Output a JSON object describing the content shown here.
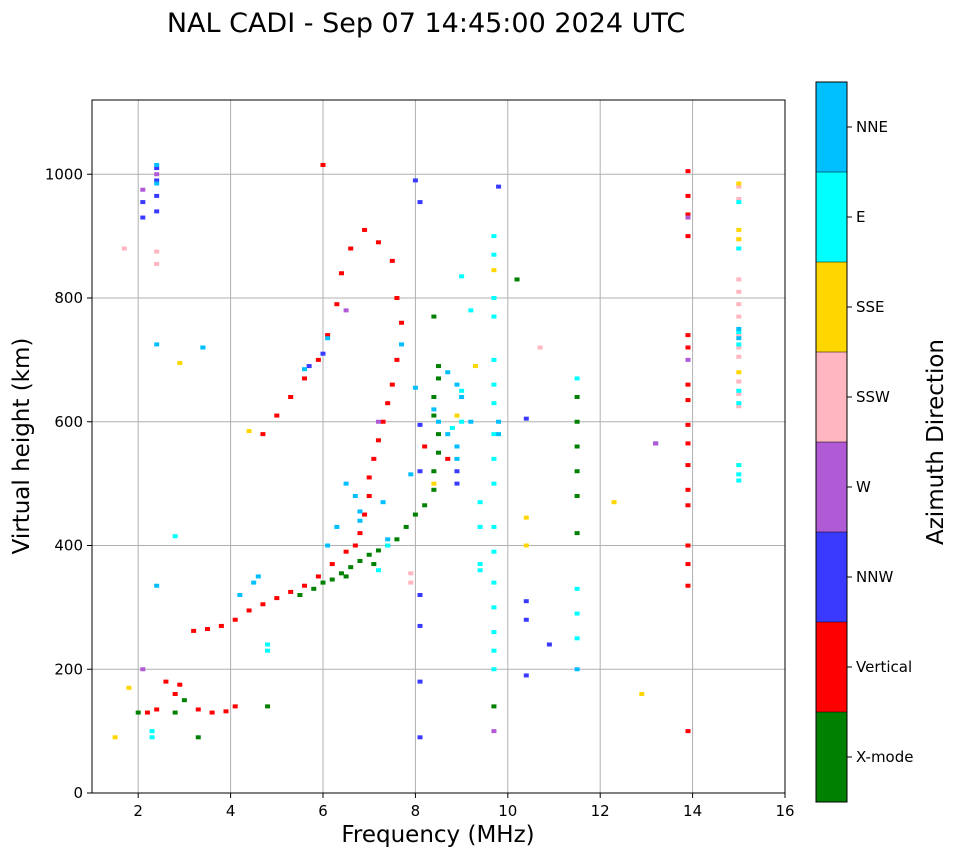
{
  "chart_data": {
    "type": "scatter",
    "title": "NAL CADI - Sep 07 14:45:00 2024 UTC",
    "xlabel": "Frequency (MHz)",
    "ylabel": "Virtual height (km)",
    "xlim": [
      1,
      16
    ],
    "ylim": [
      0,
      1120
    ],
    "xticks": [
      2,
      4,
      6,
      8,
      10,
      12,
      14,
      16
    ],
    "yticks": [
      0,
      200,
      400,
      600,
      800,
      1000
    ],
    "grid": true,
    "colorbar": {
      "label": "Azimuth Direction",
      "categories": [
        {
          "name": "X-mode",
          "color": "#008000"
        },
        {
          "name": "Vertical",
          "color": "#ff0000"
        },
        {
          "name": "NNW",
          "color": "#3a3aff"
        },
        {
          "name": "W",
          "color": "#b05ad6"
        },
        {
          "name": "SSW",
          "color": "#ffb6c1"
        },
        {
          "name": "SSE",
          "color": "#ffd700"
        },
        {
          "name": "E",
          "color": "#00ffff"
        },
        {
          "name": "NNE",
          "color": "#00bfff"
        }
      ]
    },
    "series": [
      {
        "name": "X-mode",
        "color": "#008000",
        "points": [
          [
            5.5,
            320
          ],
          [
            5.8,
            330
          ],
          [
            6.0,
            340
          ],
          [
            6.2,
            345
          ],
          [
            6.4,
            355
          ],
          [
            6.6,
            365
          ],
          [
            6.8,
            375
          ],
          [
            7.0,
            385
          ],
          [
            7.2,
            392
          ],
          [
            7.4,
            400
          ],
          [
            7.6,
            410
          ],
          [
            7.8,
            430
          ],
          [
            8.0,
            450
          ],
          [
            8.2,
            465
          ],
          [
            8.4,
            490
          ],
          [
            8.4,
            520
          ],
          [
            8.5,
            550
          ],
          [
            8.5,
            580
          ],
          [
            8.4,
            610
          ],
          [
            8.4,
            640
          ],
          [
            8.5,
            670
          ],
          [
            8.5,
            690
          ],
          [
            8.4,
            770
          ],
          [
            7.1,
            370
          ],
          [
            6.5,
            350
          ],
          [
            11.5,
            420
          ],
          [
            11.5,
            480
          ],
          [
            11.5,
            520
          ],
          [
            11.5,
            560
          ],
          [
            11.5,
            600
          ],
          [
            11.5,
            640
          ],
          [
            10.2,
            830
          ],
          [
            2.0,
            130
          ],
          [
            3.0,
            150
          ],
          [
            4.8,
            140
          ],
          [
            3.3,
            90
          ],
          [
            9.7,
            140
          ],
          [
            2.8,
            130
          ]
        ]
      },
      {
        "name": "Vertical",
        "color": "#ff0000",
        "points": [
          [
            3.2,
            262
          ],
          [
            3.5,
            265
          ],
          [
            3.8,
            270
          ],
          [
            4.1,
            280
          ],
          [
            4.4,
            295
          ],
          [
            4.7,
            305
          ],
          [
            5.0,
            315
          ],
          [
            5.3,
            325
          ],
          [
            5.6,
            335
          ],
          [
            5.9,
            350
          ],
          [
            6.2,
            370
          ],
          [
            6.5,
            390
          ],
          [
            6.7,
            400
          ],
          [
            6.8,
            420
          ],
          [
            6.9,
            450
          ],
          [
            7.0,
            480
          ],
          [
            7.0,
            510
          ],
          [
            7.1,
            540
          ],
          [
            7.2,
            570
          ],
          [
            7.3,
            600
          ],
          [
            7.4,
            630
          ],
          [
            7.5,
            660
          ],
          [
            7.6,
            700
          ],
          [
            7.7,
            760
          ],
          [
            7.6,
            800
          ],
          [
            7.5,
            860
          ],
          [
            7.2,
            890
          ],
          [
            6.9,
            910
          ],
          [
            6.6,
            880
          ],
          [
            6.4,
            840
          ],
          [
            6.3,
            790
          ],
          [
            6.1,
            740
          ],
          [
            5.9,
            700
          ],
          [
            5.6,
            670
          ],
          [
            5.3,
            640
          ],
          [
            5.0,
            610
          ],
          [
            4.7,
            580
          ],
          [
            3.3,
            135
          ],
          [
            3.6,
            130
          ],
          [
            3.9,
            132
          ],
          [
            4.1,
            140
          ],
          [
            2.8,
            160
          ],
          [
            2.4,
            135
          ],
          [
            2.2,
            130
          ],
          [
            2.9,
            175
          ],
          [
            2.6,
            180
          ],
          [
            6.0,
            1015
          ],
          [
            13.9,
            1005
          ],
          [
            13.9,
            965
          ],
          [
            13.9,
            935
          ],
          [
            13.9,
            900
          ],
          [
            13.9,
            740
          ],
          [
            13.9,
            720
          ],
          [
            13.9,
            660
          ],
          [
            13.9,
            635
          ],
          [
            13.9,
            595
          ],
          [
            13.9,
            565
          ],
          [
            13.9,
            530
          ],
          [
            13.9,
            490
          ],
          [
            13.9,
            465
          ],
          [
            13.9,
            400
          ],
          [
            13.9,
            370
          ],
          [
            13.9,
            335
          ],
          [
            13.9,
            100
          ],
          [
            8.7,
            540
          ],
          [
            8.2,
            560
          ]
        ]
      },
      {
        "name": "NNW",
        "color": "#3a3aff",
        "points": [
          [
            2.4,
            1010
          ],
          [
            2.4,
            990
          ],
          [
            2.4,
            965
          ],
          [
            2.4,
            940
          ],
          [
            2.1,
            955
          ],
          [
            2.1,
            930
          ],
          [
            6.0,
            710
          ],
          [
            5.7,
            690
          ],
          [
            8.0,
            990
          ],
          [
            8.1,
            955
          ],
          [
            8.1,
            595
          ],
          [
            8.1,
            520
          ],
          [
            8.1,
            320
          ],
          [
            8.1,
            270
          ],
          [
            8.1,
            180
          ],
          [
            8.1,
            90
          ],
          [
            9.8,
            980
          ],
          [
            10.4,
            605
          ],
          [
            10.4,
            310
          ],
          [
            10.4,
            280
          ],
          [
            10.4,
            190
          ],
          [
            10.9,
            240
          ],
          [
            13.2,
            565
          ],
          [
            8.9,
            500
          ],
          [
            8.9,
            520
          ]
        ]
      },
      {
        "name": "W",
        "color": "#b05ad6",
        "points": [
          [
            2.4,
            1000
          ],
          [
            2.1,
            975
          ],
          [
            2.1,
            200
          ],
          [
            13.2,
            565
          ],
          [
            6.5,
            780
          ],
          [
            7.2,
            600
          ],
          [
            13.9,
            700
          ],
          [
            13.9,
            930
          ],
          [
            9.7,
            100
          ]
        ]
      },
      {
        "name": "SSW",
        "color": "#ffb6c1",
        "points": [
          [
            15.0,
            980
          ],
          [
            15.0,
            960
          ],
          [
            15.0,
            895
          ],
          [
            15.0,
            880
          ],
          [
            15.0,
            830
          ],
          [
            15.0,
            810
          ],
          [
            15.0,
            790
          ],
          [
            15.0,
            770
          ],
          [
            15.0,
            740
          ],
          [
            15.0,
            720
          ],
          [
            15.0,
            705
          ],
          [
            15.0,
            665
          ],
          [
            15.0,
            645
          ],
          [
            15.0,
            625
          ],
          [
            2.4,
            875
          ],
          [
            2.4,
            855
          ],
          [
            1.7,
            880
          ],
          [
            10.7,
            720
          ],
          [
            7.9,
            355
          ],
          [
            7.9,
            340
          ]
        ]
      },
      {
        "name": "SSE",
        "color": "#ffd700",
        "points": [
          [
            15.0,
            985
          ],
          [
            15.0,
            910
          ],
          [
            15.0,
            895
          ],
          [
            15.0,
            680
          ],
          [
            15.0,
            530
          ],
          [
            12.3,
            470
          ],
          [
            12.9,
            160
          ],
          [
            2.9,
            695
          ],
          [
            4.4,
            585
          ],
          [
            1.8,
            170
          ],
          [
            1.5,
            90
          ],
          [
            9.7,
            845
          ],
          [
            9.3,
            690
          ],
          [
            8.9,
            610
          ],
          [
            10.4,
            445
          ],
          [
            10.4,
            400
          ],
          [
            8.4,
            500
          ]
        ]
      },
      {
        "name": "E",
        "color": "#00ffff",
        "points": [
          [
            15.0,
            955
          ],
          [
            15.0,
            880
          ],
          [
            15.0,
            745
          ],
          [
            15.0,
            725
          ],
          [
            15.0,
            650
          ],
          [
            15.0,
            630
          ],
          [
            15.0,
            530
          ],
          [
            15.0,
            515
          ],
          [
            15.0,
            505
          ],
          [
            9.7,
            900
          ],
          [
            9.7,
            870
          ],
          [
            9.7,
            800
          ],
          [
            9.7,
            770
          ],
          [
            9.7,
            700
          ],
          [
            9.7,
            660
          ],
          [
            9.7,
            630
          ],
          [
            9.7,
            580
          ],
          [
            9.7,
            540
          ],
          [
            9.7,
            500
          ],
          [
            9.7,
            430
          ],
          [
            9.7,
            390
          ],
          [
            9.7,
            340
          ],
          [
            9.7,
            300
          ],
          [
            9.7,
            260
          ],
          [
            9.7,
            230
          ],
          [
            9.7,
            200
          ],
          [
            11.5,
            670
          ],
          [
            11.5,
            330
          ],
          [
            11.5,
            290
          ],
          [
            11.5,
            250
          ],
          [
            9.0,
            835
          ],
          [
            9.2,
            780
          ],
          [
            9.0,
            650
          ],
          [
            9.0,
            600
          ],
          [
            8.8,
            590
          ],
          [
            9.4,
            470
          ],
          [
            9.4,
            430
          ],
          [
            9.4,
            370
          ],
          [
            9.4,
            360
          ],
          [
            7.4,
            400
          ],
          [
            7.2,
            360
          ],
          [
            4.8,
            230
          ],
          [
            4.8,
            240
          ],
          [
            2.8,
            415
          ],
          [
            3.4,
            720
          ],
          [
            2.3,
            100
          ],
          [
            2.3,
            90
          ]
        ]
      },
      {
        "name": "NNE",
        "color": "#00bfff",
        "points": [
          [
            2.4,
            1015
          ],
          [
            2.4,
            985
          ],
          [
            2.4,
            725
          ],
          [
            2.4,
            335
          ],
          [
            3.4,
            720
          ],
          [
            6.1,
            735
          ],
          [
            5.6,
            685
          ],
          [
            7.7,
            725
          ],
          [
            8.0,
            655
          ],
          [
            8.5,
            600
          ],
          [
            8.7,
            580
          ],
          [
            8.9,
            560
          ],
          [
            8.9,
            540
          ],
          [
            6.5,
            500
          ],
          [
            6.7,
            480
          ],
          [
            6.8,
            455
          ],
          [
            7.3,
            470
          ],
          [
            6.8,
            440
          ],
          [
            6.3,
            430
          ],
          [
            7.9,
            515
          ],
          [
            9.0,
            640
          ],
          [
            9.2,
            600
          ],
          [
            8.4,
            620
          ],
          [
            7.4,
            410
          ],
          [
            6.1,
            400
          ],
          [
            4.5,
            340
          ],
          [
            4.6,
            350
          ],
          [
            4.2,
            320
          ],
          [
            11.5,
            200
          ],
          [
            9.8,
            600
          ],
          [
            9.8,
            580
          ],
          [
            15.0,
            750
          ],
          [
            15.0,
            735
          ],
          [
            8.7,
            680
          ],
          [
            8.9,
            660
          ]
        ]
      }
    ]
  }
}
